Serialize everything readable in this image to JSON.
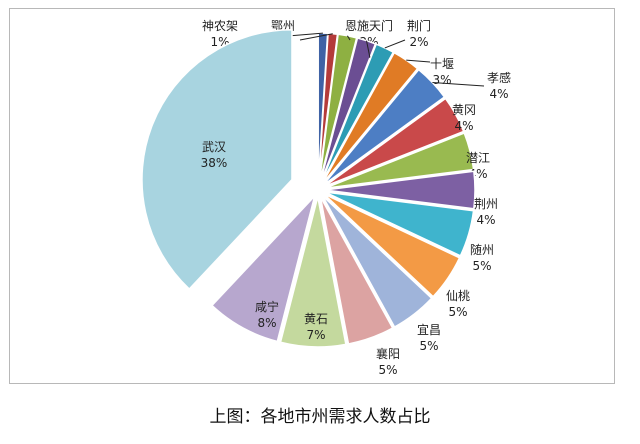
{
  "chart_data": {
    "type": "pie",
    "start_angle_deg": 0,
    "direction": "clockwise",
    "slices": [
      {
        "label": "神农架",
        "value": 1,
        "pct": "1%",
        "color": "#3F62A5"
      },
      {
        "label": "鄂州",
        "value": 1,
        "pct": "1%",
        "color": "#B43B3A"
      },
      {
        "label": "恩施",
        "value": 2,
        "pct": "2%",
        "color": "#8EB042"
      },
      {
        "label": "天门",
        "value": 2,
        "pct": "2%",
        "color": "#6B4E93"
      },
      {
        "label": "荆门",
        "value": 2,
        "pct": "2%",
        "color": "#2D9CB4"
      },
      {
        "label": "十堰",
        "value": 3,
        "pct": "3%",
        "color": "#E07B25"
      },
      {
        "label": "孝感",
        "value": 4,
        "pct": "4%",
        "color": "#4D7EC4"
      },
      {
        "label": "黄冈",
        "value": 4,
        "pct": "4%",
        "color": "#C9494A"
      },
      {
        "label": "潜江",
        "value": 4,
        "pct": "4%",
        "color": "#99BA50"
      },
      {
        "label": "荆州",
        "value": 4,
        "pct": "4%",
        "color": "#7D60A3"
      },
      {
        "label": "随州",
        "value": 5,
        "pct": "5%",
        "color": "#3FB4CD"
      },
      {
        "label": "仙桃",
        "value": 5,
        "pct": "5%",
        "color": "#F39A45"
      },
      {
        "label": "宜昌",
        "value": 5,
        "pct": "5%",
        "color": "#9FB4DA"
      },
      {
        "label": "襄阳",
        "value": 5,
        "pct": "5%",
        "color": "#DCA3A2"
      },
      {
        "label": "黄石",
        "value": 7,
        "pct": "7%",
        "color": "#C4D99E"
      },
      {
        "label": "咸宁",
        "value": 8,
        "pct": "8%",
        "color": "#B7A7CE"
      },
      {
        "label": "武汉",
        "value": 38,
        "pct": "38%",
        "color": "#A8D4E0"
      }
    ],
    "label_text": {
      "恩施": "恩施天门",
      "天门": ""
    }
  },
  "caption": "上图：各地市州需求人数占比"
}
